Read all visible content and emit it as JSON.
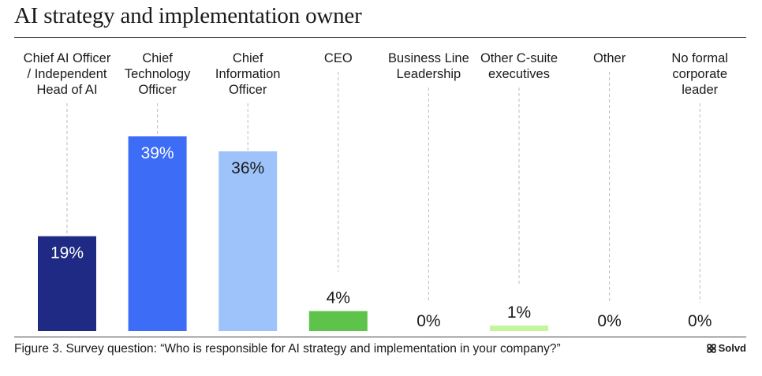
{
  "chart_data": {
    "type": "bar",
    "title": "AI strategy and implementation owner",
    "categories": [
      "Chief AI Officer / Independent Head of AI",
      "Chief Technology Officer",
      "Chief Information Officer",
      "CEO",
      "Business Line Leadership",
      "Other C-suite executives",
      "Other",
      "No formal corporate leader"
    ],
    "category_label_lines": [
      [
        "Chief AI Officer",
        "/ Independent",
        "Head of AI"
      ],
      [
        "Chief",
        "Technology",
        "Officer"
      ],
      [
        "Chief",
        "Information",
        "Officer"
      ],
      [
        "CEO"
      ],
      [
        "Business Line",
        "Leadership"
      ],
      [
        "Other C-suite",
        "executives"
      ],
      [
        "Other"
      ],
      [
        "No formal",
        "corporate",
        "leader"
      ]
    ],
    "values": [
      19,
      39,
      36,
      4,
      0,
      1,
      0,
      0
    ],
    "value_labels": [
      "19%",
      "39%",
      "36%",
      "4%",
      "0%",
      "1%",
      "0%",
      "0%"
    ],
    "bar_colors": [
      "#1f2a84",
      "#3d6cf7",
      "#9dc3fa",
      "#5ec34a",
      "#cccccc",
      "#c5f59a",
      "#cccccc",
      "#cccccc"
    ],
    "ylim": [
      0,
      39
    ],
    "grid": false,
    "legend": "none"
  },
  "caption": "Figure 3. Survey question: “Who is responsible for AI strategy and implementation in your company?”",
  "brand": {
    "name": "Solvd",
    "icon": "solvd-logo-icon"
  }
}
